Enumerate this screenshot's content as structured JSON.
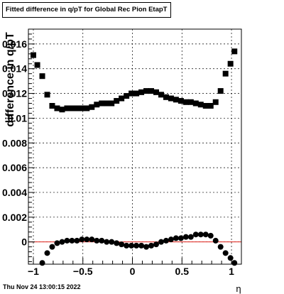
{
  "title": "Fitted difference in q/pT for Global Rec Pion EtapT",
  "timestamp": "Thu Nov 24 13:00:15 2022",
  "chart_data": {
    "type": "scatter",
    "title": "Fitted difference in q/pT for Global Rec Pion EtapT",
    "xlabel": "η",
    "ylabel": "difference in q/pT",
    "xlim": [
      -1.05,
      1.1
    ],
    "ylim": [
      -0.0018,
      0.0172
    ],
    "grid": true,
    "x_ticks": [
      -1,
      -0.5,
      0,
      0.5,
      1
    ],
    "x_tick_labels": [
      "−1",
      "−0.5",
      "0",
      "0.5",
      "1"
    ],
    "y_ticks": [
      0,
      0.002,
      0.004,
      0.006,
      0.008,
      0.01,
      0.012,
      0.014,
      0.016
    ],
    "y_tick_labels": [
      "0",
      "0.002",
      "0.004",
      "0.006",
      "0.008",
      "0.01",
      "0.012",
      "0.014",
      "0.016"
    ],
    "reference_line": {
      "y": 0,
      "color": "#e0201a"
    },
    "series": [
      {
        "marker": "square",
        "color": "#000000",
        "points": [
          [
            -1.0,
            0.0151
          ],
          [
            -0.96,
            0.0143
          ],
          [
            -0.91,
            0.0134
          ],
          [
            -0.86,
            0.0119
          ],
          [
            -0.81,
            0.011
          ],
          [
            -0.76,
            0.0108
          ],
          [
            -0.71,
            0.0107
          ],
          [
            -0.66,
            0.0108
          ],
          [
            -0.61,
            0.0108
          ],
          [
            -0.56,
            0.0108
          ],
          [
            -0.51,
            0.0108
          ],
          [
            -0.46,
            0.0108
          ],
          [
            -0.41,
            0.0109
          ],
          [
            -0.36,
            0.0111
          ],
          [
            -0.31,
            0.0112
          ],
          [
            -0.26,
            0.0112
          ],
          [
            -0.21,
            0.0112
          ],
          [
            -0.16,
            0.0114
          ],
          [
            -0.11,
            0.0116
          ],
          [
            -0.06,
            0.0118
          ],
          [
            -0.01,
            0.012
          ],
          [
            0.04,
            0.012
          ],
          [
            0.09,
            0.0121
          ],
          [
            0.14,
            0.0122
          ],
          [
            0.19,
            0.0122
          ],
          [
            0.24,
            0.0121
          ],
          [
            0.29,
            0.0119
          ],
          [
            0.34,
            0.0117
          ],
          [
            0.39,
            0.0116
          ],
          [
            0.44,
            0.0115
          ],
          [
            0.49,
            0.0114
          ],
          [
            0.54,
            0.0113
          ],
          [
            0.59,
            0.0113
          ],
          [
            0.64,
            0.0112
          ],
          [
            0.69,
            0.0111
          ],
          [
            0.74,
            0.011
          ],
          [
            0.79,
            0.011
          ],
          [
            0.84,
            0.0113
          ],
          [
            0.89,
            0.0122
          ],
          [
            0.94,
            0.0136
          ],
          [
            0.99,
            0.0144
          ],
          [
            1.03,
            0.0154
          ]
        ]
      },
      {
        "marker": "circle",
        "color": "#000000",
        "points": [
          [
            -0.91,
            -0.0017
          ],
          [
            -0.86,
            -0.0009
          ],
          [
            -0.81,
            -0.0004
          ],
          [
            -0.76,
            -0.0001
          ],
          [
            -0.71,
            0.0
          ],
          [
            -0.66,
            0.0001
          ],
          [
            -0.61,
            0.0001
          ],
          [
            -0.56,
            0.0001
          ],
          [
            -0.51,
            0.0002
          ],
          [
            -0.46,
            0.0002
          ],
          [
            -0.41,
            0.0002
          ],
          [
            -0.36,
            0.0001
          ],
          [
            -0.31,
            0.0001
          ],
          [
            -0.26,
            0.0
          ],
          [
            -0.21,
            0.0
          ],
          [
            -0.16,
            -0.0001
          ],
          [
            -0.11,
            -0.0002
          ],
          [
            -0.06,
            -0.0003
          ],
          [
            -0.01,
            -0.0003
          ],
          [
            0.04,
            -0.0003
          ],
          [
            0.09,
            -0.0003
          ],
          [
            0.14,
            -0.0004
          ],
          [
            0.19,
            -0.0003
          ],
          [
            0.24,
            -0.0002
          ],
          [
            0.29,
            0.0
          ],
          [
            0.34,
            0.0001
          ],
          [
            0.39,
            0.0002
          ],
          [
            0.44,
            0.0003
          ],
          [
            0.49,
            0.0003
          ],
          [
            0.54,
            0.0004
          ],
          [
            0.59,
            0.0004
          ],
          [
            0.64,
            0.0006
          ],
          [
            0.69,
            0.0006
          ],
          [
            0.74,
            0.0006
          ],
          [
            0.79,
            0.0005
          ],
          [
            0.84,
            0.0001
          ],
          [
            0.89,
            -0.0004
          ],
          [
            0.94,
            -0.0009
          ],
          [
            0.99,
            -0.0013
          ],
          [
            1.03,
            -0.0017
          ]
        ]
      }
    ]
  }
}
